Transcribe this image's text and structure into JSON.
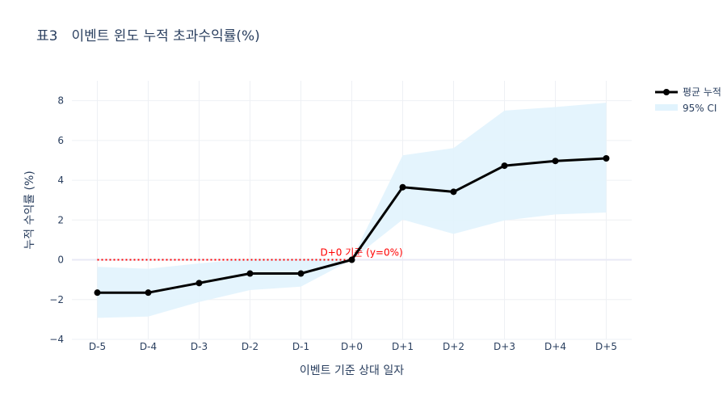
{
  "chart_data": {
    "type": "line",
    "title": "표3　이벤트 윈도 누적 초과수익률(%)",
    "xlabel": "이벤트 기준 상대 일자",
    "ylabel": "누적 수익률 (%)",
    "categories": [
      "D-5",
      "D-4",
      "D-3",
      "D-2",
      "D-1",
      "D+0",
      "D+1",
      "D+2",
      "D+3",
      "D+4",
      "D+5"
    ],
    "series": [
      {
        "name": "평균 누적",
        "values": [
          -1.65,
          -1.65,
          -1.17,
          -0.69,
          -0.69,
          0.0,
          3.65,
          3.42,
          4.73,
          4.97,
          5.1
        ],
        "color": "#000000"
      }
    ],
    "ci": {
      "name": "95% CI",
      "lower": [
        -2.92,
        -2.85,
        -2.12,
        -1.52,
        -1.35,
        0.0,
        2.02,
        1.3,
        1.98,
        2.28,
        2.38
      ],
      "upper": [
        -0.35,
        -0.45,
        -0.18,
        0.05,
        0.05,
        0.05,
        5.25,
        5.62,
        7.5,
        7.68,
        7.9
      ],
      "color": "#e1f3fd"
    },
    "reference_line": {
      "y": 0,
      "x_from": "D-5",
      "x_to": "D+0",
      "color": "#ff0000"
    },
    "annotation": {
      "text": "D+0 기준 (y=0%)",
      "color": "#ff0000"
    },
    "ylim": [
      -4,
      9
    ],
    "yticks": [
      -4,
      -2,
      0,
      2,
      4,
      6,
      8
    ],
    "grid": true,
    "legend_position": "top-right"
  }
}
